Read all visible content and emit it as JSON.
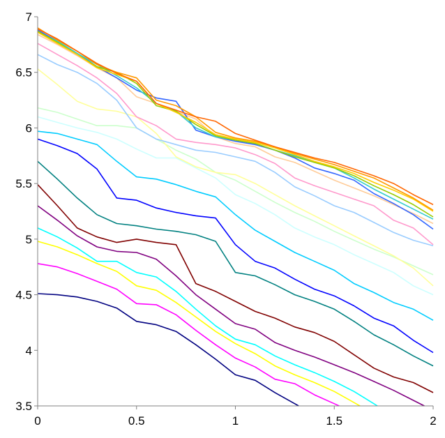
{
  "chart_data": {
    "type": "line",
    "title": "",
    "xlabel": "",
    "ylabel": "",
    "xlim": [
      0,
      2
    ],
    "ylim": [
      3.5,
      7
    ],
    "xticks": [
      "0",
      "0.5",
      "1",
      "1.5",
      "2"
    ],
    "yticks": [
      "3.5",
      "4",
      "4.5",
      "5",
      "5.5",
      "6",
      "6.5",
      "7"
    ],
    "grid": false,
    "legend": "none",
    "x": [
      0,
      0.1,
      0.2,
      0.3,
      0.4,
      0.5,
      0.6,
      0.7,
      0.8,
      0.9,
      1.0,
      1.1,
      1.2,
      1.3,
      1.4,
      1.5,
      1.6,
      1.7,
      1.8,
      1.9,
      2.0
    ],
    "series": [
      {
        "color": "#000080",
        "values": [
          4.51,
          4.5,
          4.48,
          4.44,
          4.38,
          4.26,
          4.23,
          4.17,
          4.05,
          3.92,
          3.78,
          3.73,
          3.62,
          3.52,
          null,
          null,
          null,
          null,
          null,
          null,
          null
        ]
      },
      {
        "color": "#ff00ff",
        "values": [
          4.78,
          4.75,
          4.69,
          4.62,
          4.55,
          4.42,
          4.41,
          4.32,
          4.18,
          4.05,
          3.93,
          3.85,
          3.74,
          3.7,
          3.6,
          3.52,
          null,
          null,
          null,
          null,
          null
        ]
      },
      {
        "color": "#ffff00",
        "values": [
          4.98,
          4.93,
          4.86,
          4.78,
          4.71,
          4.58,
          4.54,
          4.43,
          4.3,
          4.17,
          4.06,
          3.97,
          3.86,
          3.78,
          3.71,
          3.63,
          3.53,
          null,
          null,
          null,
          null
        ]
      },
      {
        "color": "#00ffff",
        "values": [
          5.1,
          5.02,
          4.92,
          4.8,
          4.8,
          4.7,
          4.66,
          4.53,
          4.37,
          4.22,
          4.1,
          4.05,
          3.95,
          3.87,
          3.8,
          3.72,
          3.63,
          3.52,
          null,
          null,
          null
        ]
      },
      {
        "color": "#800080",
        "values": [
          5.3,
          5.17,
          5.03,
          4.93,
          4.89,
          4.88,
          4.82,
          4.67,
          4.5,
          4.37,
          4.24,
          4.19,
          4.07,
          4.0,
          3.94,
          3.87,
          3.8,
          3.72,
          3.64,
          3.55,
          null
        ]
      },
      {
        "color": "#800000",
        "values": [
          5.49,
          5.3,
          5.1,
          5.02,
          4.97,
          5.0,
          4.97,
          4.95,
          4.6,
          4.53,
          4.44,
          4.35,
          4.29,
          4.21,
          4.16,
          4.08,
          3.96,
          3.84,
          3.76,
          3.71,
          3.62
        ]
      },
      {
        "color": "#008080",
        "values": [
          5.7,
          5.54,
          5.37,
          5.22,
          5.14,
          5.12,
          5.09,
          5.07,
          5.04,
          4.98,
          4.7,
          4.67,
          4.59,
          4.5,
          4.44,
          4.37,
          4.26,
          4.14,
          4.05,
          3.95,
          3.86
        ]
      },
      {
        "color": "#0000ff",
        "values": [
          5.9,
          5.84,
          5.77,
          5.63,
          5.37,
          5.35,
          5.28,
          5.24,
          5.21,
          5.19,
          4.95,
          4.8,
          4.74,
          4.64,
          4.55,
          4.49,
          4.4,
          4.29,
          4.22,
          4.09,
          3.98
        ]
      },
      {
        "color": "#00ccff",
        "values": [
          5.97,
          5.95,
          5.9,
          5.85,
          5.7,
          5.56,
          5.54,
          5.49,
          5.43,
          5.38,
          5.22,
          5.08,
          4.98,
          4.88,
          4.8,
          4.72,
          4.6,
          4.52,
          4.43,
          4.37,
          4.27
        ]
      },
      {
        "color": "#ccffff",
        "values": [
          6.1,
          6.05,
          6.0,
          5.96,
          5.9,
          5.81,
          5.73,
          5.73,
          5.64,
          5.55,
          5.4,
          5.32,
          5.22,
          5.1,
          5.02,
          4.95,
          4.86,
          4.78,
          4.7,
          4.58,
          4.5
        ]
      },
      {
        "color": "#ccffcc",
        "values": [
          6.18,
          6.14,
          6.08,
          6.02,
          6.02,
          6.0,
          5.9,
          5.8,
          5.72,
          5.6,
          5.53,
          5.43,
          5.33,
          5.24,
          5.16,
          5.07,
          4.99,
          4.91,
          4.84,
          4.76,
          4.68
        ]
      },
      {
        "color": "#ffff99",
        "values": [
          6.53,
          6.39,
          6.24,
          6.17,
          6.15,
          6.1,
          5.95,
          5.74,
          5.65,
          5.6,
          5.58,
          5.5,
          5.4,
          5.3,
          5.21,
          5.12,
          5.03,
          4.94,
          4.85,
          4.74,
          4.58
        ]
      },
      {
        "color": "#99ccff",
        "values": [
          6.66,
          6.57,
          6.5,
          6.4,
          6.25,
          6.0,
          5.9,
          5.85,
          5.8,
          5.78,
          5.74,
          5.7,
          5.6,
          5.47,
          5.39,
          5.3,
          5.24,
          5.15,
          5.06,
          4.99,
          4.94
        ]
      },
      {
        "color": "#ff99cc",
        "values": [
          6.76,
          6.66,
          6.56,
          6.45,
          6.31,
          6.1,
          6.02,
          5.9,
          5.87,
          5.85,
          5.82,
          5.76,
          5.68,
          5.55,
          5.48,
          5.42,
          5.36,
          5.3,
          5.17,
          5.1,
          4.95
        ]
      },
      {
        "color": "#ffcc99",
        "values": [
          6.84,
          6.75,
          6.65,
          6.54,
          6.45,
          6.28,
          6.22,
          6.15,
          6.08,
          5.92,
          5.86,
          5.83,
          5.74,
          5.69,
          5.61,
          5.53,
          5.46,
          5.39,
          5.31,
          5.23,
          5.14
        ]
      },
      {
        "color": "#3366ff",
        "values": [
          6.88,
          6.78,
          6.67,
          6.55,
          6.45,
          6.34,
          6.27,
          6.24,
          5.98,
          5.92,
          5.88,
          5.85,
          5.8,
          5.73,
          5.64,
          5.59,
          5.53,
          5.41,
          5.32,
          5.22,
          5.09
        ]
      },
      {
        "color": "#33cccc",
        "values": [
          6.86,
          6.78,
          6.67,
          6.57,
          6.47,
          6.36,
          6.22,
          6.15,
          6.0,
          5.92,
          5.89,
          5.86,
          5.8,
          5.75,
          5.69,
          5.64,
          5.55,
          5.45,
          5.36,
          5.27,
          5.18
        ]
      },
      {
        "color": "#99cc00",
        "values": [
          6.87,
          6.77,
          6.66,
          6.55,
          6.5,
          6.4,
          6.2,
          6.15,
          6.03,
          5.93,
          5.89,
          5.86,
          5.8,
          5.74,
          5.69,
          5.64,
          5.57,
          5.48,
          5.4,
          5.31,
          5.2
        ]
      },
      {
        "color": "#ffcc00",
        "values": [
          6.86,
          6.76,
          6.66,
          6.54,
          6.48,
          6.42,
          6.22,
          6.14,
          6.05,
          5.94,
          5.9,
          5.87,
          5.82,
          5.76,
          5.7,
          5.65,
          5.59,
          5.51,
          5.44,
          5.36,
          5.25
        ]
      },
      {
        "color": "#ff9900",
        "values": [
          6.9,
          6.79,
          6.69,
          6.57,
          6.5,
          6.45,
          6.25,
          6.2,
          6.1,
          5.96,
          5.91,
          5.88,
          5.83,
          5.77,
          5.72,
          5.67,
          5.61,
          5.55,
          5.46,
          5.37,
          5.26
        ]
      },
      {
        "color": "#ff6600",
        "values": [
          6.89,
          6.8,
          6.69,
          6.58,
          6.49,
          6.42,
          6.22,
          6.16,
          6.1,
          6.06,
          5.95,
          5.89,
          5.83,
          5.78,
          5.73,
          5.69,
          5.63,
          5.57,
          5.5,
          5.4,
          5.31
        ]
      }
    ]
  }
}
